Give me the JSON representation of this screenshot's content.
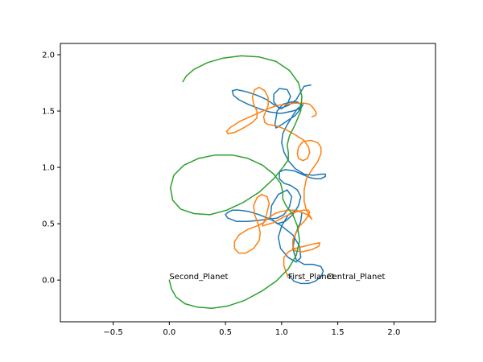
{
  "chart_data": {
    "type": "line",
    "title": "",
    "xlabel": "",
    "ylabel": "",
    "xlim": [
      -0.97,
      2.37
    ],
    "ylim": [
      -0.37,
      2.1
    ],
    "xticks": [
      -0.5,
      0.0,
      0.5,
      1.0,
      1.5,
      2.0
    ],
    "yticks": [
      0.0,
      0.5,
      1.0,
      1.5,
      2.0
    ],
    "xtick_labels": [
      "−0.5",
      "0.0",
      "0.5",
      "1.0",
      "1.5",
      "2.0"
    ],
    "ytick_labels": [
      "0.0",
      "0.5",
      "1.0",
      "1.5",
      "2.0"
    ],
    "grid": false,
    "series": [
      {
        "color": "#1f77b4",
        "x": [
          1.06,
          1.11,
          1.17,
          1.24,
          1.3,
          1.35,
          1.37,
          1.35,
          1.28,
          1.2,
          1.13,
          1.1,
          1.12,
          1.17,
          1.18,
          1.13,
          1.06,
          1.0,
          0.97,
          0.99,
          1.06,
          1.13,
          1.17,
          1.16,
          1.1,
          1.0,
          0.9,
          0.8,
          0.7,
          0.62,
          0.56,
          0.52,
          0.5,
          0.52,
          0.6,
          0.7,
          0.8,
          0.88,
          0.96,
          1.02,
          1.07,
          1.09,
          1.05,
          0.97,
          0.91,
          0.9,
          0.96,
          1.03,
          1.1,
          1.15,
          1.17,
          1.14,
          1.08,
          1.02,
          0.98,
          0.98,
          1.03,
          1.11,
          1.18,
          1.25,
          1.3,
          1.35,
          1.39,
          1.39,
          1.35,
          1.28,
          1.2,
          1.12,
          1.06,
          1.02,
          1.0,
          1.01,
          1.05,
          1.1,
          1.14,
          1.18,
          1.19,
          1.17,
          1.12,
          1.06,
          1.0,
          0.95,
          0.94,
          0.96,
          1.01,
          1.08,
          1.14,
          1.17,
          1.16,
          1.1,
          1.0,
          0.9,
          0.8,
          0.7,
          0.62,
          0.57,
          0.56,
          0.6,
          0.69,
          0.78,
          0.87,
          0.94,
          1.0,
          1.05,
          1.08,
          1.05,
          0.98,
          0.93,
          0.93,
          0.98,
          1.06,
          1.13,
          1.17,
          1.2,
          1.26
        ],
        "y": [
          0.05,
          -0.01,
          -0.03,
          -0.03,
          -0.01,
          0.03,
          0.08,
          0.12,
          0.14,
          0.14,
          0.18,
          0.28,
          0.4,
          0.52,
          0.6,
          0.62,
          0.58,
          0.48,
          0.38,
          0.28,
          0.2,
          0.16,
          0.2,
          0.3,
          0.4,
          0.48,
          0.54,
          0.58,
          0.61,
          0.62,
          0.62,
          0.6,
          0.58,
          0.55,
          0.52,
          0.52,
          0.53,
          0.54,
          0.55,
          0.58,
          0.65,
          0.74,
          0.8,
          0.76,
          0.66,
          0.55,
          0.5,
          0.52,
          0.58,
          0.66,
          0.74,
          0.8,
          0.84,
          0.86,
          0.9,
          0.96,
          0.98,
          0.97,
          0.94,
          0.91,
          0.9,
          0.9,
          0.92,
          0.94,
          0.94,
          0.93,
          0.94,
          0.99,
          1.06,
          1.14,
          1.22,
          1.3,
          1.38,
          1.46,
          1.52,
          1.55,
          1.56,
          1.52,
          1.46,
          1.42,
          1.38,
          1.35,
          1.38,
          1.5,
          1.56,
          1.58,
          1.58,
          1.56,
          1.52,
          1.5,
          1.48,
          1.49,
          1.52,
          1.56,
          1.6,
          1.64,
          1.68,
          1.69,
          1.67,
          1.64,
          1.6,
          1.55,
          1.52,
          1.56,
          1.63,
          1.69,
          1.7,
          1.65,
          1.58,
          1.52,
          1.55,
          1.6,
          1.67,
          1.72,
          1.73
        ]
      },
      {
        "color": "#ff7f0e",
        "x": [
          1.06,
          1.04,
          1.02,
          1.02,
          1.06,
          1.12,
          1.2,
          1.28,
          1.34,
          1.33,
          1.27,
          1.18,
          1.12,
          1.1,
          1.1,
          1.13,
          1.16,
          1.2,
          1.23,
          1.25,
          1.24,
          1.19,
          1.11,
          1.02,
          0.93,
          0.86,
          0.83,
          0.83,
          0.85,
          0.87,
          0.89,
          0.87,
          0.82,
          0.78,
          0.75,
          0.76,
          0.79,
          0.81,
          0.8,
          0.75,
          0.68,
          0.62,
          0.58,
          0.58,
          0.62,
          0.7,
          0.78,
          0.84,
          0.88,
          0.94,
          1.0,
          1.06,
          1.12,
          1.18,
          1.23,
          1.26,
          1.27,
          1.25,
          1.22,
          1.2,
          1.2,
          1.22,
          1.27,
          1.32,
          1.35,
          1.35,
          1.32,
          1.26,
          1.19,
          1.15,
          1.14,
          1.15,
          1.19,
          1.23,
          1.25,
          1.24,
          1.2,
          1.12,
          1.03,
          0.95,
          0.88,
          0.85,
          0.84,
          0.86,
          0.88,
          0.88,
          0.85,
          0.8,
          0.76,
          0.74,
          0.75,
          0.78,
          0.78,
          0.74,
          0.66,
          0.58,
          0.52,
          0.51,
          0.55,
          0.63,
          0.72,
          0.81,
          0.88,
          0.96,
          1.04,
          1.12,
          1.2,
          1.25,
          1.28,
          1.3,
          1.31,
          1.3,
          1.27
        ],
        "y": [
          0.02,
          0.07,
          0.13,
          0.2,
          0.25,
          0.28,
          0.3,
          0.32,
          0.33,
          0.3,
          0.27,
          0.25,
          0.26,
          0.3,
          0.36,
          0.42,
          0.48,
          0.52,
          0.56,
          0.6,
          0.62,
          0.62,
          0.6,
          0.56,
          0.51,
          0.49,
          0.48,
          0.49,
          0.53,
          0.6,
          0.68,
          0.74,
          0.76,
          0.73,
          0.66,
          0.58,
          0.5,
          0.42,
          0.35,
          0.28,
          0.24,
          0.24,
          0.28,
          0.34,
          0.4,
          0.45,
          0.48,
          0.51,
          0.55,
          0.59,
          0.61,
          0.62,
          0.62,
          0.6,
          0.58,
          0.55,
          0.54,
          0.57,
          0.62,
          0.7,
          0.8,
          0.9,
          0.98,
          1.05,
          1.12,
          1.18,
          1.22,
          1.24,
          1.23,
          1.18,
          1.12,
          1.08,
          1.06,
          1.08,
          1.13,
          1.18,
          1.24,
          1.29,
          1.34,
          1.37,
          1.38,
          1.4,
          1.45,
          1.5,
          1.55,
          1.62,
          1.68,
          1.71,
          1.69,
          1.63,
          1.56,
          1.5,
          1.44,
          1.4,
          1.35,
          1.31,
          1.3,
          1.32,
          1.36,
          1.41,
          1.45,
          1.49,
          1.52,
          1.55,
          1.56,
          1.57,
          1.57,
          1.56,
          1.53,
          1.5,
          1.48,
          1.46,
          1.45
        ]
      },
      {
        "color": "#2ca02c",
        "x": [
          0.0,
          0.02,
          0.06,
          0.14,
          0.25,
          0.38,
          0.52,
          0.67,
          0.82,
          0.95,
          1.06,
          1.13,
          1.16,
          1.14,
          1.1,
          1.04,
          1.01,
          1.01,
          0.99,
          0.93,
          0.83,
          0.7,
          0.56,
          0.41,
          0.26,
          0.13,
          0.04,
          0.01,
          0.03,
          0.1,
          0.22,
          0.36,
          0.51,
          0.66,
          0.8,
          0.93,
          1.02,
          1.06,
          1.06,
          1.05,
          1.07,
          1.12,
          1.17,
          1.18,
          1.15,
          1.07,
          0.95,
          0.8,
          0.64,
          0.48,
          0.34,
          0.22,
          0.15,
          0.12
        ],
        "y": [
          0.0,
          -0.08,
          -0.15,
          -0.21,
          -0.24,
          -0.25,
          -0.23,
          -0.18,
          -0.1,
          -0.01,
          0.1,
          0.22,
          0.35,
          0.48,
          0.58,
          0.66,
          0.72,
          0.78,
          0.86,
          0.94,
          1.02,
          1.08,
          1.11,
          1.11,
          1.08,
          1.02,
          0.93,
          0.82,
          0.71,
          0.63,
          0.59,
          0.58,
          0.62,
          0.69,
          0.78,
          0.9,
          1.01,
          1.07,
          1.13,
          1.2,
          1.28,
          1.38,
          1.5,
          1.63,
          1.75,
          1.86,
          1.94,
          1.98,
          1.99,
          1.97,
          1.93,
          1.87,
          1.81,
          1.76
        ]
      }
    ],
    "annotations": [
      {
        "text": "Second_Planet",
        "x": 0.0,
        "y": 0.0
      },
      {
        "text": "First_Planet",
        "x": 1.06,
        "y": 0.0
      },
      {
        "text": "Central_Planet",
        "x": 1.4,
        "y": 0.0
      }
    ]
  }
}
